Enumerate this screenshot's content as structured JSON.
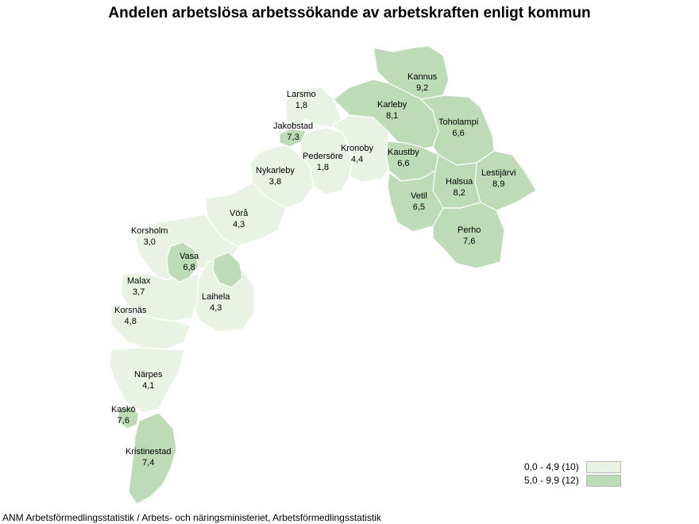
{
  "title": "Andelen arbetslösa arbetssökande av arbetskraften enligt kommun",
  "footer": "ANM Arbetsförmedlingsstatistik / Arbets- och näringsministeriet, Arbetsförmedlingsstatistik",
  "colors": {
    "low": "#e9f3e4",
    "high": "#bddbb7"
  },
  "legend": [
    {
      "label": "0,0 - 4,9 (10)",
      "class": "low"
    },
    {
      "label": "5,0 - 9,9 (12)",
      "class": "high"
    }
  ],
  "municipalities": [
    {
      "name": "Kannus",
      "value": "9,2",
      "class": "high"
    },
    {
      "name": "Larsmo",
      "value": "1,8",
      "class": "low"
    },
    {
      "name": "Karleby",
      "value": "8,1",
      "class": "high"
    },
    {
      "name": "Toholampi",
      "value": "6,6",
      "class": "high"
    },
    {
      "name": "Jakobstad",
      "value": "7,3",
      "class": "high"
    },
    {
      "name": "Kronoby",
      "value": "4,4",
      "class": "low"
    },
    {
      "name": "Pedersöre",
      "value": "1,8",
      "class": "low"
    },
    {
      "name": "Kaustby",
      "value": "6,6",
      "class": "high"
    },
    {
      "name": "Nykarleby",
      "value": "3,8",
      "class": "low"
    },
    {
      "name": "Lestijärvi",
      "value": "8,9",
      "class": "high"
    },
    {
      "name": "Halsua",
      "value": "8,2",
      "class": "high"
    },
    {
      "name": "Vetil",
      "value": "6,5",
      "class": "high"
    },
    {
      "name": "Vörå",
      "value": "4,3",
      "class": "low"
    },
    {
      "name": "Perho",
      "value": "7,6",
      "class": "high"
    },
    {
      "name": "Korsholm",
      "value": "3,0",
      "class": "low"
    },
    {
      "name": "Vasa",
      "value": "6,8",
      "class": "high"
    },
    {
      "name": "Malax",
      "value": "3,7",
      "class": "low"
    },
    {
      "name": "Laihela",
      "value": "4,3",
      "class": "low"
    },
    {
      "name": "Korsnäs",
      "value": "4,8",
      "class": "low"
    },
    {
      "name": "Närpes",
      "value": "4,1",
      "class": "low"
    },
    {
      "name": "Kaskö",
      "value": "7,6",
      "class": "high"
    },
    {
      "name": "Kristinestad",
      "value": "7,4",
      "class": "high"
    }
  ]
}
